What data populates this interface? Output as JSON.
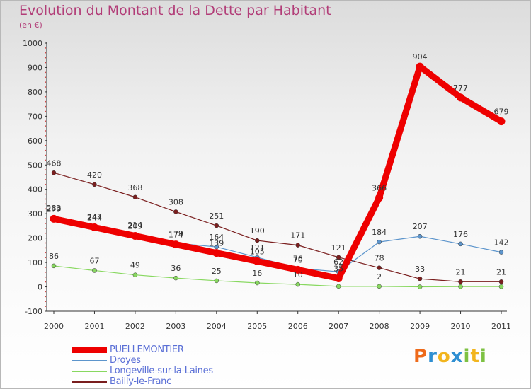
{
  "chart_data": {
    "type": "line",
    "title": "Evolution du Montant de la Dette par Habitant",
    "subtitle": "(en €)",
    "x": [
      "2000",
      "2001",
      "2002",
      "2003",
      "2004",
      "2005",
      "2006",
      "2007",
      "2008",
      "2009",
      "2010",
      "2011"
    ],
    "ylim": [
      -100,
      1000
    ],
    "yticks": [
      -100,
      0,
      100,
      200,
      300,
      400,
      500,
      600,
      700,
      800,
      900,
      1000
    ],
    "grid": false,
    "legend_position": "bottom-left",
    "series": [
      {
        "name": "PUELLEMONTIER",
        "color": "#ee0000",
        "values": [
          279,
          244,
          209,
          174,
          139,
          105,
          70,
          35,
          366,
          904,
          777,
          679
        ],
        "labels": [
          "279",
          "244",
          "209",
          "174",
          "139",
          "105",
          "70",
          "35",
          "366",
          "904",
          "777",
          "679"
        ]
      },
      {
        "name": "Droyes",
        "color": "#5d95cc",
        "values": [
          283,
          247,
          214,
          179,
          164,
          121,
          76,
          62,
          184,
          207,
          176,
          142
        ],
        "labels": [
          "283",
          "247",
          "214",
          "179",
          "164",
          "121",
          "76",
          "62",
          "184",
          "207",
          "176",
          "142"
        ]
      },
      {
        "name": "Longeville-sur-la-Laines",
        "color": "#88d860",
        "values": [
          86,
          67,
          49,
          36,
          25,
          16,
          10,
          2,
          2,
          0,
          1,
          1
        ],
        "labels": [
          "86",
          "67",
          "49",
          "36",
          "25",
          "16",
          "10",
          "",
          "2",
          "",
          "",
          ""
        ]
      },
      {
        "name": "Bailly-le-Franc",
        "color": "#7a1e1e",
        "values": [
          468,
          420,
          368,
          308,
          251,
          190,
          171,
          121,
          78,
          33,
          21,
          21
        ],
        "labels": [
          "468",
          "420",
          "368",
          "308",
          "251",
          "190",
          "171",
          "121",
          "78",
          "33",
          "21",
          "21"
        ]
      }
    ]
  },
  "logo": {
    "text": "Proxiti",
    "letters": [
      {
        "ch": "P",
        "color": "#ee6a1a"
      },
      {
        "ch": "r",
        "color": "#2f8fd2"
      },
      {
        "ch": "o",
        "color": "#f2b51e"
      },
      {
        "ch": "x",
        "color": "#2f8fd2"
      },
      {
        "ch": "i",
        "color": "#7dc142"
      },
      {
        "ch": "t",
        "color": "#f2b51e"
      },
      {
        "ch": "i",
        "color": "#7dc142"
      }
    ]
  }
}
